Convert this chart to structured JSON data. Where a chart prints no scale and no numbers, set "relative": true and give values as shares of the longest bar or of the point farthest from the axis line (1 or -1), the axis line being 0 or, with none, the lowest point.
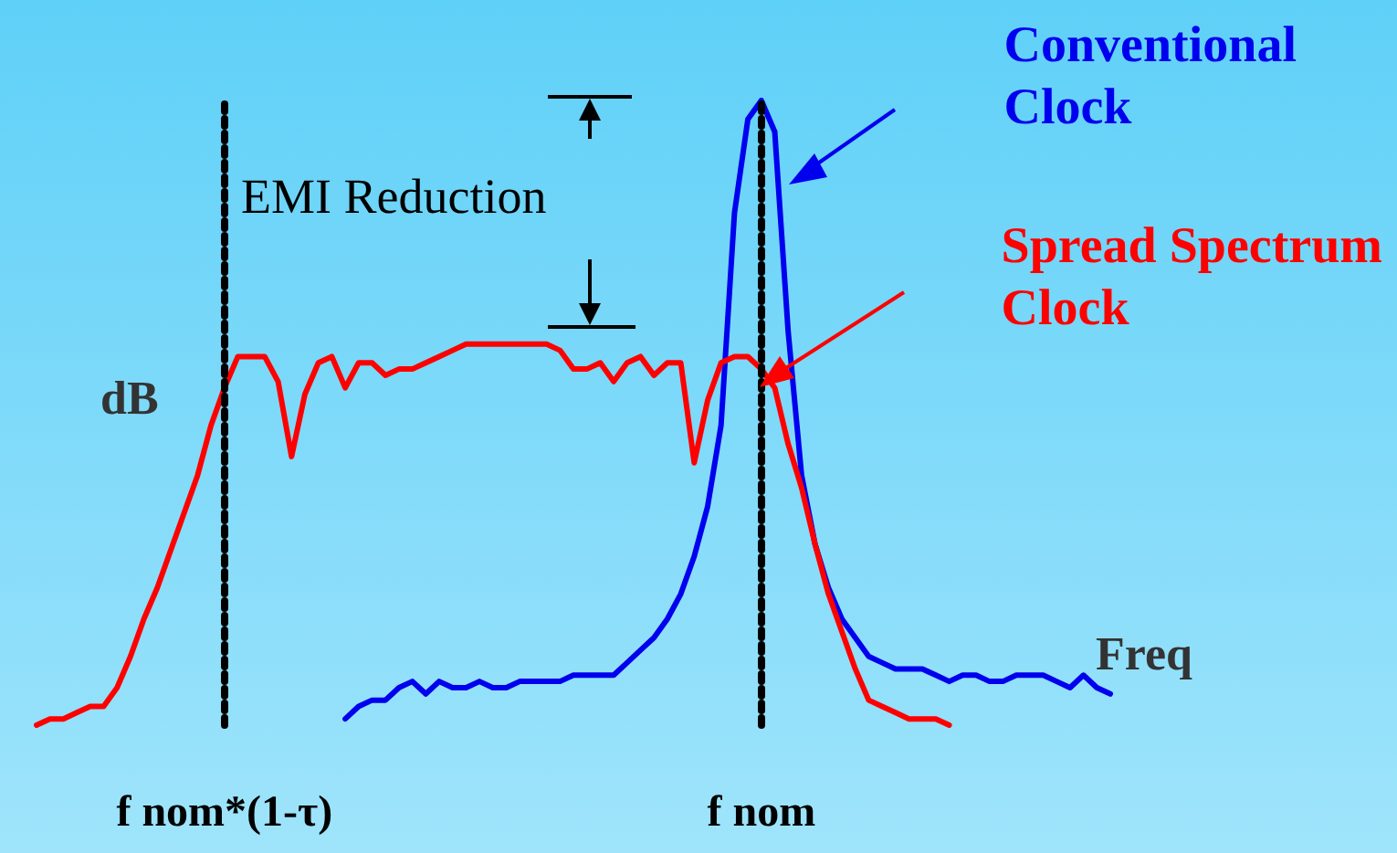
{
  "chart_data": {
    "type": "line",
    "relative": true,
    "xlabel": "Freq",
    "ylabel": "dB",
    "categories": [
      null,
      null,
      null,
      null,
      null,
      null,
      null,
      null,
      null,
      null,
      null,
      null,
      null,
      null,
      "f nom*(1-τ)",
      null,
      null,
      null,
      null,
      null,
      null,
      null,
      null,
      null,
      null,
      null,
      null,
      null,
      null,
      null,
      null,
      null,
      null,
      null,
      null,
      null,
      null,
      null,
      null,
      null,
      null,
      null,
      null,
      null,
      null,
      null,
      null,
      null,
      null,
      null,
      null,
      null,
      null,
      null,
      "f nom",
      null,
      null,
      null,
      null,
      null,
      null,
      null,
      null,
      null,
      null,
      null,
      null,
      null,
      null,
      null,
      null,
      null,
      null,
      null,
      null,
      null,
      null,
      null,
      null,
      null,
      null
    ],
    "grid": false,
    "legend": false,
    "marker": "none",
    "line_style": "solid",
    "annotations": [
      "EMI Reduction"
    ],
    "ref_lines": [
      {
        "axis": "x",
        "value": "f nom*(1-τ)",
        "color": "#000000",
        "line_style": "dotted"
      },
      {
        "axis": "x",
        "value": "f nom",
        "color": "#000000",
        "line_style": "dotted"
      }
    ],
    "series": [
      {
        "name": "Conventional Clock",
        "color": "#0000ee",
        "values": [
          null,
          null,
          null,
          null,
          null,
          null,
          null,
          null,
          null,
          null,
          null,
          null,
          null,
          null,
          null,
          null,
          null,
          null,
          null,
          null,
          null,
          null,
          null,
          0.01,
          0.03,
          0.04,
          0.04,
          0.06,
          0.07,
          0.05,
          0.07,
          0.06,
          0.06,
          0.07,
          0.06,
          0.06,
          0.07,
          0.07,
          0.07,
          0.07,
          0.08,
          0.08,
          0.08,
          0.08,
          0.1,
          0.12,
          0.14,
          0.17,
          0.21,
          0.27,
          0.35,
          0.48,
          0.82,
          0.97,
          1.0,
          0.95,
          0.63,
          0.4,
          0.29,
          0.22,
          0.17,
          0.14,
          0.11,
          0.1,
          0.09,
          0.09,
          0.09,
          0.08,
          0.07,
          0.08,
          0.08,
          0.07,
          0.07,
          0.08,
          0.08,
          0.08,
          0.07,
          0.06,
          0.08,
          0.06,
          0.05
        ]
      },
      {
        "name": "Spread Spectrum Clock",
        "color": "#ff0000",
        "values": [
          0.0,
          0.01,
          0.01,
          0.02,
          0.03,
          0.03,
          0.06,
          0.11,
          0.17,
          0.22,
          0.28,
          0.34,
          0.4,
          0.48,
          0.54,
          0.59,
          0.59,
          0.59,
          0.55,
          0.43,
          0.53,
          0.58,
          0.59,
          0.54,
          0.58,
          0.58,
          0.56,
          0.57,
          0.57,
          0.58,
          0.59,
          0.6,
          0.61,
          0.61,
          0.61,
          0.61,
          0.61,
          0.61,
          0.61,
          0.6,
          0.57,
          0.57,
          0.58,
          0.55,
          0.58,
          0.59,
          0.56,
          0.58,
          0.58,
          0.42,
          0.52,
          0.58,
          0.59,
          0.59,
          0.57,
          0.54,
          0.45,
          0.38,
          0.29,
          0.21,
          0.15,
          0.09,
          0.04,
          0.03,
          0.02,
          0.01,
          0.01,
          0.01,
          0.0,
          null,
          null,
          null,
          null,
          null,
          null,
          null,
          null,
          null,
          null,
          null,
          null
        ]
      }
    ]
  }
}
